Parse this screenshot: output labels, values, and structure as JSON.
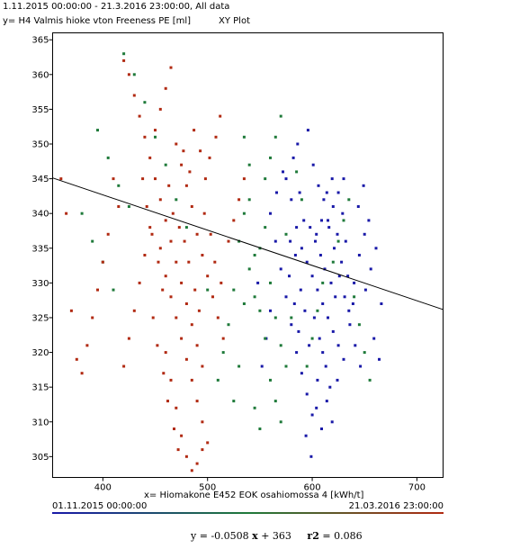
{
  "header": {
    "range_text": "1.11.2015 00:00:00 - 21.3.2016 23:00:00, All data",
    "title": "XY Plot"
  },
  "timebar": {
    "start": "01.11.2015 00:00:00",
    "end": "21.03.2016 23:00:00"
  },
  "regression": {
    "y_lhs": "y = ",
    "slope": "-0.0508",
    "x_sym": "x",
    "intercept": "+ 363",
    "r2_label": "r2",
    "r2_value": "= 0.086"
  },
  "colors": {
    "early": "#1919a8",
    "middle": "#1f7a3a",
    "late": "#b12a12",
    "regression_line": "#000000"
  },
  "chart_data": {
    "type": "scatter",
    "xlabel": "x= Hiomakone E452 EOK osahiomossa 4 [kWh/t]",
    "ylabel": "y= H4 Valmis hioke vton Freeness PE [ml]",
    "xlim": [
      352,
      725
    ],
    "ylim": [
      302,
      366
    ],
    "xticks": [
      400,
      500,
      600,
      700
    ],
    "yticks": [
      305,
      310,
      315,
      320,
      325,
      330,
      335,
      340,
      345,
      350,
      355,
      360,
      365
    ],
    "trendline": {
      "slope": -0.0508,
      "intercept": 363,
      "r2": 0.086
    },
    "series": [
      {
        "points": [
          [
            575,
            345
          ],
          [
            580,
            342
          ],
          [
            585,
            338
          ],
          [
            590,
            335
          ],
          [
            595,
            333
          ],
          [
            600,
            331
          ],
          [
            605,
            329
          ],
          [
            610,
            327
          ],
          [
            615,
            325
          ],
          [
            620,
            323
          ],
          [
            625,
            321
          ],
          [
            630,
            319
          ],
          [
            635,
            326
          ],
          [
            640,
            330
          ],
          [
            645,
            334
          ],
          [
            650,
            337
          ],
          [
            565,
            336
          ],
          [
            570,
            332
          ],
          [
            575,
            328
          ],
          [
            580,
            324
          ],
          [
            585,
            320
          ],
          [
            590,
            317
          ],
          [
            595,
            314
          ],
          [
            600,
            311
          ],
          [
            605,
            316
          ],
          [
            610,
            320
          ],
          [
            615,
            339
          ],
          [
            620,
            341
          ],
          [
            625,
            343
          ],
          [
            630,
            345
          ],
          [
            598,
            338
          ],
          [
            603,
            336
          ],
          [
            588,
            343
          ],
          [
            592,
            339
          ],
          [
            608,
            334
          ],
          [
            612,
            332
          ],
          [
            618,
            330
          ],
          [
            622,
            328
          ],
          [
            628,
            333
          ],
          [
            632,
            336
          ],
          [
            578,
            331
          ],
          [
            583,
            327
          ],
          [
            587,
            323
          ],
          [
            597,
            321
          ],
          [
            602,
            325
          ],
          [
            607,
            322
          ],
          [
            613,
            318
          ],
          [
            617,
            315
          ],
          [
            560,
            340
          ],
          [
            566,
            343
          ],
          [
            572,
            346
          ],
          [
            582,
            348
          ],
          [
            586,
            350
          ],
          [
            596,
            352
          ],
          [
            601,
            347
          ],
          [
            606,
            344
          ],
          [
            611,
            342
          ],
          [
            616,
            338
          ],
          [
            621,
            335
          ],
          [
            626,
            331
          ],
          [
            631,
            328
          ],
          [
            636,
            324
          ],
          [
            641,
            321
          ],
          [
            646,
            318
          ],
          [
            651,
            329
          ],
          [
            656,
            332
          ],
          [
            661,
            335
          ],
          [
            666,
            327
          ],
          [
            560,
            326
          ],
          [
            556,
            322
          ],
          [
            552,
            318
          ],
          [
            548,
            330
          ],
          [
            594,
            308
          ],
          [
            599,
            305
          ],
          [
            604,
            312
          ],
          [
            609,
            309
          ],
          [
            614,
            313
          ],
          [
            619,
            310
          ],
          [
            624,
            316
          ],
          [
            629,
            340
          ],
          [
            579,
            336
          ],
          [
            584,
            334
          ],
          [
            589,
            329
          ],
          [
            593,
            326
          ],
          [
            604,
            337
          ],
          [
            609,
            339
          ],
          [
            614,
            343
          ],
          [
            619,
            345
          ],
          [
            624,
            337
          ],
          [
            634,
            331
          ],
          [
            639,
            327
          ],
          [
            644,
            341
          ],
          [
            649,
            344
          ],
          [
            654,
            339
          ],
          [
            659,
            322
          ],
          [
            664,
            319
          ]
        ]
      },
      {
        "points": [
          [
            540,
            332
          ],
          [
            545,
            328
          ],
          [
            550,
            335
          ],
          [
            555,
            338
          ],
          [
            560,
            330
          ],
          [
            565,
            325
          ],
          [
            570,
            321
          ],
          [
            575,
            318
          ],
          [
            535,
            340
          ],
          [
            530,
            336
          ],
          [
            525,
            329
          ],
          [
            520,
            324
          ],
          [
            515,
            320
          ],
          [
            510,
            316
          ],
          [
            545,
            312
          ],
          [
            550,
            309
          ],
          [
            555,
            345
          ],
          [
            560,
            348
          ],
          [
            565,
            351
          ],
          [
            570,
            354
          ],
          [
            540,
            342
          ],
          [
            535,
            327
          ],
          [
            530,
            318
          ],
          [
            525,
            313
          ],
          [
            480,
            338
          ],
          [
            470,
            342
          ],
          [
            460,
            347
          ],
          [
            450,
            351
          ],
          [
            440,
            356
          ],
          [
            430,
            360
          ],
          [
            420,
            363
          ],
          [
            500,
            329
          ],
          [
            595,
            318
          ],
          [
            600,
            322
          ],
          [
            605,
            326
          ],
          [
            610,
            330
          ],
          [
            590,
            342
          ],
          [
            585,
            346
          ],
          [
            580,
            325
          ],
          [
            575,
            337
          ],
          [
            560,
            316
          ],
          [
            565,
            313
          ],
          [
            570,
            310
          ],
          [
            555,
            322
          ],
          [
            550,
            326
          ],
          [
            545,
            334
          ],
          [
            540,
            347
          ],
          [
            535,
            351
          ],
          [
            620,
            333
          ],
          [
            625,
            336
          ],
          [
            630,
            339
          ],
          [
            635,
            342
          ],
          [
            640,
            328
          ],
          [
            645,
            324
          ],
          [
            650,
            320
          ],
          [
            655,
            316
          ],
          [
            380,
            340
          ],
          [
            390,
            336
          ],
          [
            400,
            333
          ],
          [
            410,
            329
          ],
          [
            395,
            352
          ],
          [
            405,
            348
          ],
          [
            415,
            344
          ],
          [
            425,
            341
          ]
        ]
      },
      {
        "points": [
          [
            450,
            345
          ],
          [
            455,
            342
          ],
          [
            460,
            339
          ],
          [
            465,
            336
          ],
          [
            470,
            333
          ],
          [
            475,
            330
          ],
          [
            480,
            327
          ],
          [
            485,
            324
          ],
          [
            490,
            321
          ],
          [
            495,
            318
          ],
          [
            445,
            348
          ],
          [
            440,
            351
          ],
          [
            435,
            354
          ],
          [
            430,
            357
          ],
          [
            425,
            360
          ],
          [
            420,
            362
          ],
          [
            455,
            335
          ],
          [
            460,
            331
          ],
          [
            465,
            328
          ],
          [
            470,
            325
          ],
          [
            475,
            322
          ],
          [
            480,
            319
          ],
          [
            485,
            316
          ],
          [
            490,
            313
          ],
          [
            495,
            310
          ],
          [
            500,
            307
          ],
          [
            445,
            338
          ],
          [
            440,
            334
          ],
          [
            435,
            330
          ],
          [
            430,
            326
          ],
          [
            425,
            322
          ],
          [
            420,
            318
          ],
          [
            450,
            352
          ],
          [
            455,
            355
          ],
          [
            460,
            358
          ],
          [
            465,
            361
          ],
          [
            470,
            350
          ],
          [
            475,
            347
          ],
          [
            480,
            344
          ],
          [
            485,
            341
          ],
          [
            490,
            337
          ],
          [
            495,
            334
          ],
          [
            500,
            331
          ],
          [
            505,
            328
          ],
          [
            510,
            325
          ],
          [
            515,
            322
          ],
          [
            520,
            336
          ],
          [
            525,
            339
          ],
          [
            530,
            342
          ],
          [
            535,
            345
          ],
          [
            448,
            325
          ],
          [
            452,
            321
          ],
          [
            458,
            317
          ],
          [
            462,
            313
          ],
          [
            468,
            309
          ],
          [
            472,
            306
          ],
          [
            478,
            336
          ],
          [
            482,
            333
          ],
          [
            488,
            329
          ],
          [
            492,
            326
          ],
          [
            498,
            345
          ],
          [
            502,
            348
          ],
          [
            508,
            351
          ],
          [
            512,
            354
          ],
          [
            438,
            345
          ],
          [
            442,
            341
          ],
          [
            447,
            337
          ],
          [
            453,
            333
          ],
          [
            457,
            329
          ],
          [
            463,
            344
          ],
          [
            467,
            340
          ],
          [
            473,
            338
          ],
          [
            477,
            349
          ],
          [
            483,
            346
          ],
          [
            487,
            352
          ],
          [
            493,
            349
          ],
          [
            497,
            340
          ],
          [
            503,
            337
          ],
          [
            507,
            333
          ],
          [
            513,
            330
          ],
          [
            410,
            345
          ],
          [
            415,
            341
          ],
          [
            405,
            337
          ],
          [
            400,
            333
          ],
          [
            395,
            329
          ],
          [
            390,
            325
          ],
          [
            385,
            321
          ],
          [
            380,
            317
          ],
          [
            460,
            320
          ],
          [
            465,
            316
          ],
          [
            470,
            312
          ],
          [
            475,
            308
          ],
          [
            480,
            305
          ],
          [
            485,
            303
          ],
          [
            490,
            304
          ],
          [
            495,
            306
          ],
          [
            365,
            340
          ],
          [
            370,
            326
          ],
          [
            375,
            319
          ],
          [
            360,
            345
          ]
        ]
      }
    ]
  }
}
